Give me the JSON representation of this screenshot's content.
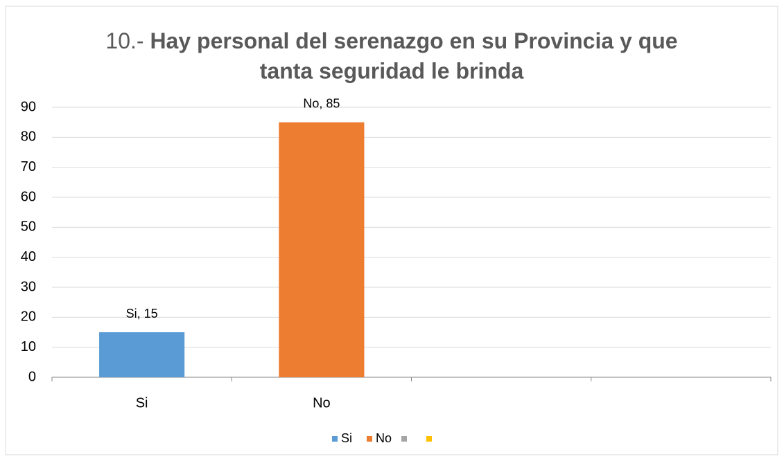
{
  "chart_data": {
    "type": "bar",
    "title": [
      "10.-",
      "Hay personal del serenazgo en su Provincia y que",
      "tanta seguridad le brinda"
    ],
    "categories": [
      "Si",
      "No",
      null,
      null
    ],
    "values": [
      15,
      85,
      null,
      null
    ],
    "value_labels": [
      "Si, 15",
      "No, 85",
      null,
      null
    ],
    "colors": [
      "#5b9bd5",
      "#ed7d31",
      "#a5a5a5",
      "#ffc000"
    ],
    "ylim": [
      0,
      90
    ],
    "yticks": [
      0,
      10,
      20,
      30,
      40,
      50,
      60,
      70,
      80,
      90
    ],
    "grid": true,
    "legend": "bottom"
  }
}
